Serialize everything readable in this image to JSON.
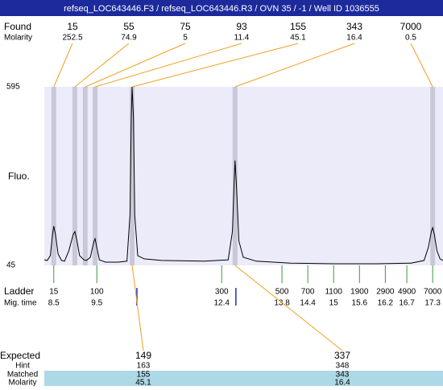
{
  "header": "refseq_LOC643446.F3 / refseq_LOC643446.R3 / OVN 35 / -1 / Well ID 1036555",
  "chart_data": {
    "type": "line",
    "ylabel": "Fluo.",
    "ylim": [
      45,
      595
    ],
    "yticks": [
      45,
      595
    ],
    "xlim": [
      8.28,
      17.54
    ],
    "grid": false,
    "x": [
      8.28,
      8.35,
      8.42,
      8.47,
      8.5,
      8.54,
      8.6,
      8.68,
      8.75,
      8.85,
      8.95,
      8.99,
      9.04,
      9.1,
      9.2,
      9.26,
      9.35,
      9.43,
      9.46,
      9.5,
      9.56,
      9.7,
      10.0,
      10.2,
      10.27,
      10.3,
      10.32,
      10.35,
      10.38,
      10.45,
      10.6,
      11.0,
      12.0,
      12.55,
      12.65,
      12.69,
      12.71,
      12.74,
      12.8,
      12.9,
      13.2,
      14,
      15,
      16,
      16.8,
      17.1,
      17.2,
      17.27,
      17.3,
      17.34,
      17.4,
      17.47,
      17.54
    ],
    "series": [
      {
        "color": "#000000",
        "values": [
          62,
          60,
          75,
          140,
          166,
          140,
          80,
          60,
          58,
          90,
          140,
          149,
          120,
          75,
          62,
          60,
          70,
          118,
          127,
          100,
          62,
          55,
          55,
          58,
          200,
          500,
          595,
          500,
          200,
          75,
          65,
          60,
          58,
          62,
          150,
          300,
          368,
          300,
          120,
          70,
          58,
          52,
          50,
          50,
          52,
          60,
          100,
          150,
          161,
          140,
          90,
          65,
          60
        ]
      }
    ],
    "found": {
      "label": "Found",
      "molarity_label": "Molarity",
      "band_color": "#c8c8d8",
      "line_color": "#f0a020",
      "sizes": [
        15,
        55,
        75,
        93,
        155,
        343,
        7000
      ],
      "molarity": [
        252.5,
        74.9,
        5,
        11.4,
        45.1,
        16.4,
        0.5
      ],
      "times": [
        8.5,
        8.99,
        9.23,
        9.46,
        10.32,
        12.71,
        17.3
      ]
    },
    "ladder": {
      "label": "Ladder",
      "time_label": "Mig. time",
      "color": "#3a9a3a",
      "sizes": [
        15,
        100,
        300,
        500,
        700,
        1100,
        1900,
        2900,
        4900,
        7000
      ],
      "times": [
        8.5,
        9.5,
        12.4,
        13.8,
        14.4,
        15,
        15.6,
        16.2,
        16.7,
        17.3
      ]
    },
    "expected": {
      "label": "Expected",
      "hint_label": "Hint",
      "matched_label": "Matched",
      "molarity_label": "Molarity",
      "marker_color": "#2030c0",
      "sizes": [
        149,
        337
      ],
      "times": [
        10.43,
        12.73
      ],
      "hint": [
        163,
        348
      ],
      "matched": [
        155,
        343
      ],
      "molarity": [
        45.1,
        16.4
      ]
    }
  }
}
